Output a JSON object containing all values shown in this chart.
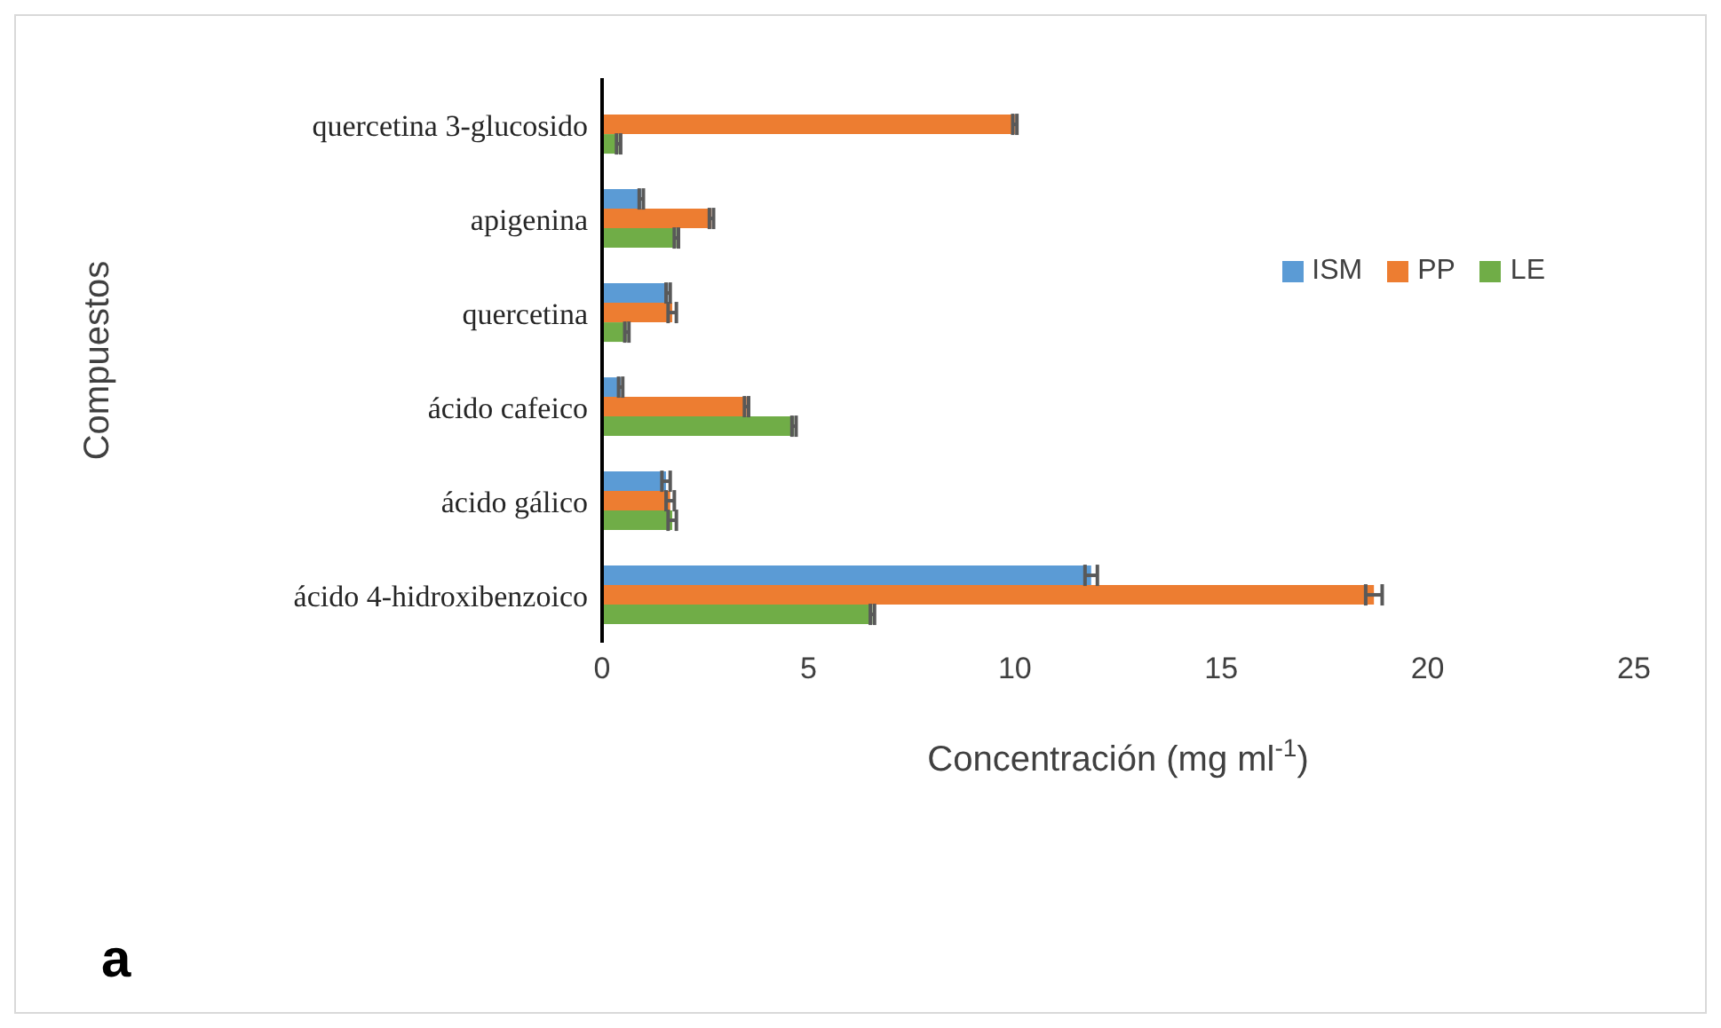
{
  "chart_data": {
    "type": "bar",
    "orientation": "horizontal",
    "ylabel": "Compuestos",
    "xlabel": "Concentración (mg ml$^{-1}$)",
    "categories": [
      "quercetina 3-glucosido",
      "apigenina",
      "quercetina",
      "ácido cafeico",
      "ácido gálico",
      "ácido 4-hidroxibenzoico"
    ],
    "series": [
      {
        "name": "ISM",
        "color": "#5b9bd5",
        "values": [
          null,
          0.95,
          1.6,
          0.45,
          1.55,
          11.85
        ],
        "errors": [
          null,
          0.05,
          0.05,
          0.05,
          0.1,
          0.15
        ]
      },
      {
        "name": "PP",
        "color": "#ed7d31",
        "values": [
          10,
          2.65,
          1.7,
          3.5,
          1.65,
          18.7
        ],
        "errors": [
          0.05,
          0.05,
          0.1,
          0.05,
          0.1,
          0.2
        ]
      },
      {
        "name": "LE",
        "color": "#70ad47",
        "values": [
          0.4,
          1.8,
          0.6,
          4.65,
          1.7,
          6.55
        ],
        "errors": [
          0.05,
          0.05,
          0.05,
          0.05,
          0.1,
          0.05
        ]
      }
    ],
    "xlim": [
      0,
      25
    ],
    "xticks": [
      0,
      5,
      10,
      15,
      20,
      25
    ],
    "legend": "top right",
    "annotations": [
      "a"
    ]
  }
}
